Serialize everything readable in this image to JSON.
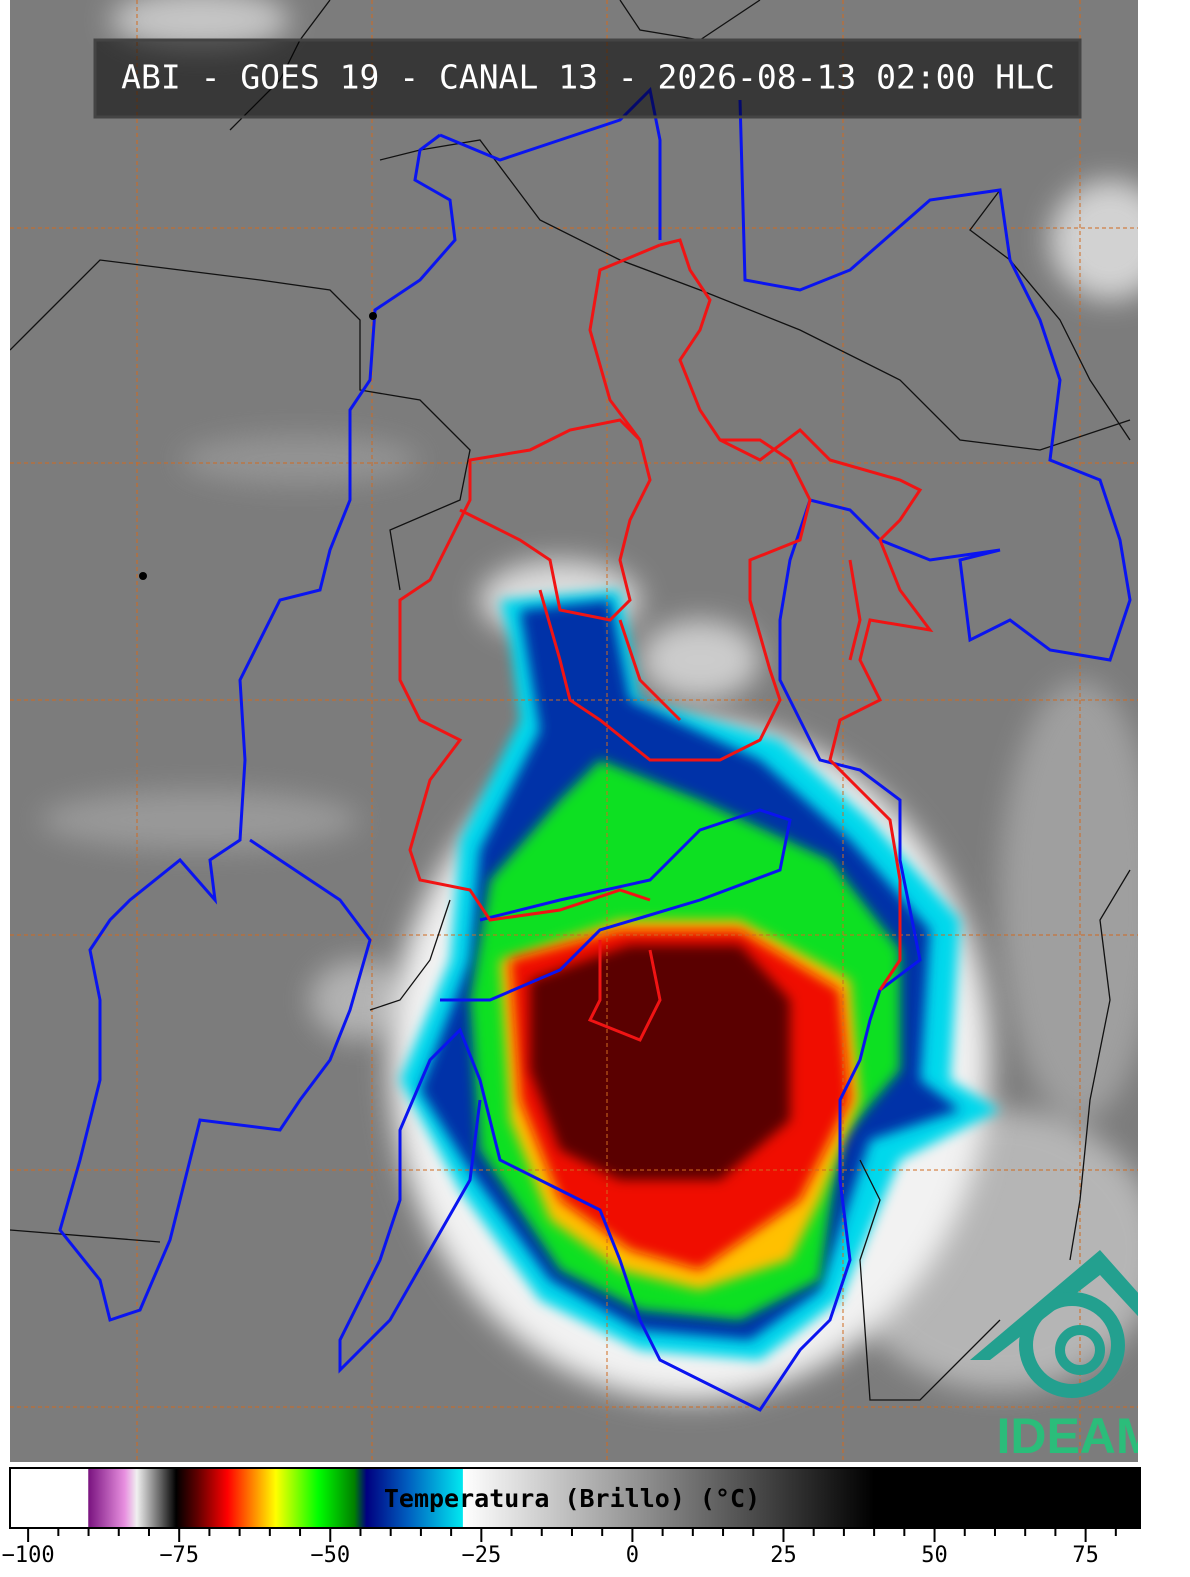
{
  "header": {
    "title": "ABI - GOES 19 - CANAL 13 - 2026-08-13 02:00 HLC"
  },
  "logo": {
    "text": "IDEAM"
  },
  "colorbar": {
    "label": "Temperatura (Brillo) (°C)",
    "xlim": [
      -103,
      84
    ],
    "xticks": [
      {
        "value": -100,
        "label": "−100"
      },
      {
        "value": -75,
        "label": "−75"
      },
      {
        "value": -50,
        "label": "−50"
      },
      {
        "value": -25,
        "label": "−25"
      },
      0,
      25,
      50,
      75
    ],
    "minor_ticks": [
      -95,
      -90,
      -85,
      -80,
      -70,
      -65,
      -60,
      -55,
      -45,
      -40,
      -35,
      -30,
      -20,
      -15,
      -10,
      -5,
      5,
      10,
      15,
      20,
      30,
      35,
      40,
      45,
      55,
      60,
      65,
      70,
      80
    ],
    "colormap": [
      {
        "value": -103,
        "color": "#ffffff"
      },
      {
        "value": -90.1,
        "color": "#ffffff"
      },
      {
        "value": -90,
        "color": "#7a1480"
      },
      {
        "value": -84,
        "color": "#e890e0"
      },
      {
        "value": -82,
        "color": "#f0f0f0"
      },
      {
        "value": -78,
        "color": "#606060"
      },
      {
        "value": -75.5,
        "color": "#000000"
      },
      {
        "value": -72,
        "color": "#600000"
      },
      {
        "value": -67,
        "color": "#ff0000"
      },
      {
        "value": -63,
        "color": "#ff8000"
      },
      {
        "value": -59,
        "color": "#ffff00"
      },
      {
        "value": -52,
        "color": "#00ff00"
      },
      {
        "value": -46,
        "color": "#008000"
      },
      {
        "value": -44,
        "color": "#000080"
      },
      {
        "value": -37,
        "color": "#0060c0"
      },
      {
        "value": -28.1,
        "color": "#00e8f0"
      },
      {
        "value": -28,
        "color": "#ffffff"
      },
      {
        "value": 40,
        "color": "#000000"
      },
      {
        "value": 84,
        "color": "#000000"
      }
    ]
  }
}
